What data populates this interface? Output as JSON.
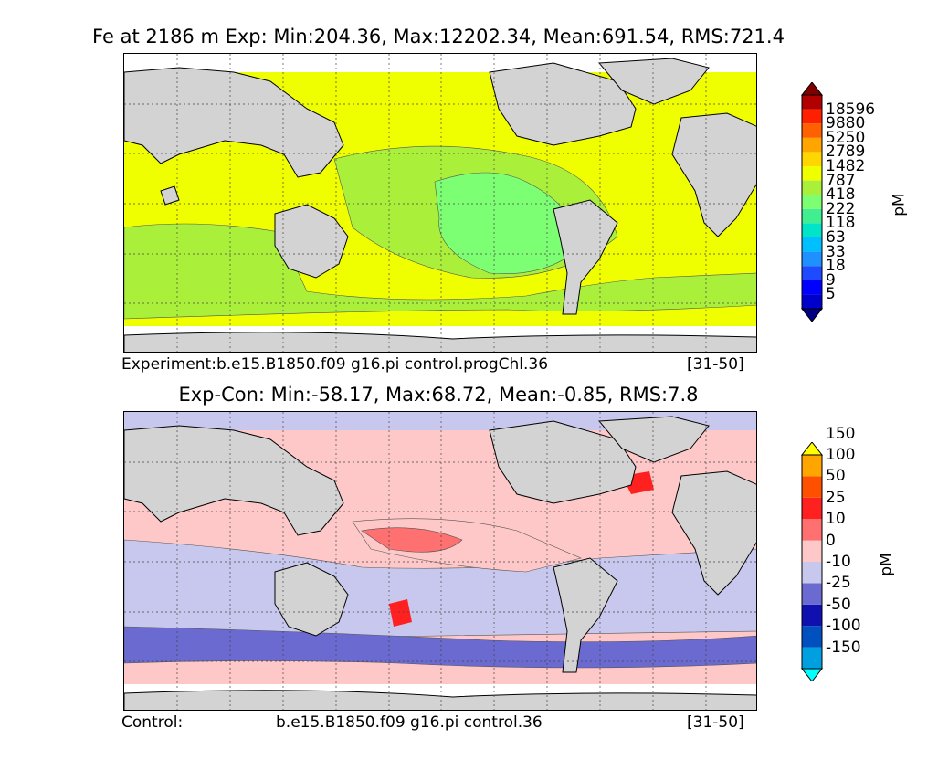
{
  "top": {
    "title": "Fe at 2186 m Exp: Min:204.36, Max:12202.34, Mean:691.54, RMS:721.4",
    "caption_left": "Experiment:b.e15.B1850.f09 g16.pi control.progChl.36",
    "caption_right": "[31-50]",
    "units": "pM"
  },
  "bottom": {
    "title": "Exp-Con: Min:-58.17, Max:68.72, Mean:-0.85, RMS:7.8",
    "caption_left": "Control:",
    "caption_center": "b.e15.B1850.f09 g16.pi control.36",
    "caption_right": "[31-50]",
    "units": "pM"
  },
  "chart_data": [
    {
      "type": "heatmap",
      "title": "Fe at 2186 m Exp: Min:204.36, Max:12202.34, Mean:691.54, RMS:721.4",
      "variable": "Fe",
      "depth_m": 2186,
      "units": "pM",
      "stats": {
        "min": 204.36,
        "max": 12202.34,
        "mean": 691.54,
        "rms": 721.4
      },
      "colorbar_levels": [
        5,
        9,
        18,
        33,
        63,
        118,
        222,
        418,
        787,
        1482,
        2789,
        5250,
        9880,
        18596
      ],
      "colorbar_colors": [
        "#000080",
        "#0000cd",
        "#0000ff",
        "#1e4bff",
        "#1e90ff",
        "#00bfff",
        "#00e5c8",
        "#40f090",
        "#7cff72",
        "#aaf03a",
        "#f0ff00",
        "#ffd700",
        "#ffa500",
        "#ff6000",
        "#ff2000",
        "#b00000",
        "#800000"
      ]
    },
    {
      "type": "heatmap",
      "title": "Exp-Con: Min:-58.17, Max:68.72, Mean:-0.85, RMS:7.8",
      "units": "pM",
      "stats": {
        "min": -58.17,
        "max": 68.72,
        "mean": -0.85,
        "rms": 7.8
      },
      "colorbar_levels": [
        -150,
        -100,
        -50,
        -25,
        -10,
        0,
        10,
        25,
        50,
        100,
        150
      ],
      "colorbar_colors": [
        "#00ffff",
        "#00a0e0",
        "#0050c0",
        "#1010b0",
        "#6a6ad0",
        "#c8c8ee",
        "#ffc8c8",
        "#ff7070",
        "#ff2020",
        "#ff5000",
        "#ffa500",
        "#ffff00"
      ]
    }
  ]
}
